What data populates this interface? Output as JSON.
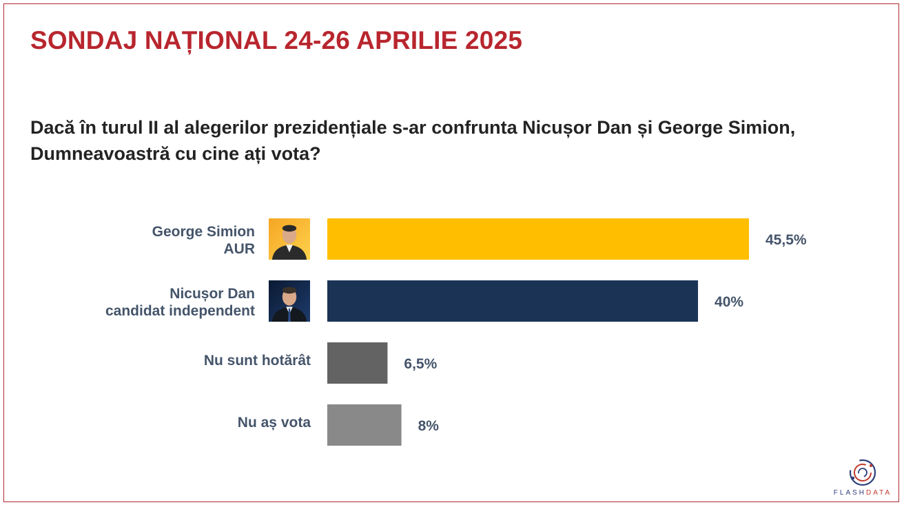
{
  "title": "SONDAJ NAȚIONAL 24-26 APRILIE 2025",
  "question": "Dacă în turul II al alegerilor prezidențiale s-ar confrunta Nicușor Dan și George Simion, Dumneavoastră cu cine ați vota?",
  "brand": {
    "text_main": "FLASH",
    "text_accent": "DATA"
  },
  "colors": {
    "title": "#b8262e",
    "frame": "#b02a30",
    "label": "#44546a"
  },
  "chart_data": {
    "type": "bar",
    "orientation": "horizontal",
    "categories": [
      [
        "George Simion",
        "AUR"
      ],
      [
        "Nicușor Dan",
        "candidat independent"
      ],
      [
        "Nu sunt hotărât"
      ],
      [
        "Nu aș vota"
      ]
    ],
    "values": [
      45.5,
      40,
      6.5,
      8
    ],
    "value_labels": [
      "45,5%",
      "40%",
      "6,5%",
      "8%"
    ],
    "colors": [
      "#ffbf00",
      "#1b3456",
      "#636363",
      "#898989"
    ],
    "icons": [
      "candidate-photo-george-simion",
      "candidate-photo-nicusor-dan",
      null,
      null
    ],
    "xlim": [
      0,
      100
    ],
    "grid": false,
    "legend": "none",
    "xlabel": "",
    "ylabel": ""
  }
}
